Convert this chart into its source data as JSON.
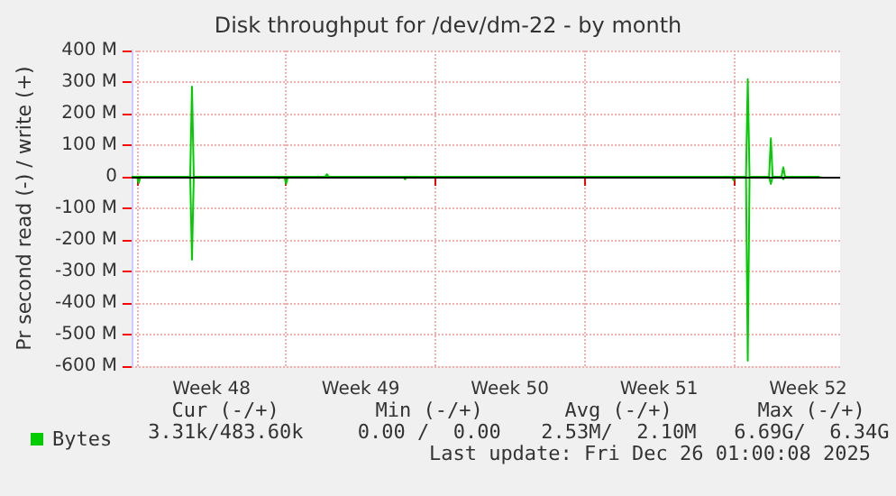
{
  "chart_data": {
    "type": "line",
    "title": "Disk throughput for /dev/dm-22 - by month",
    "ylabel": "Pr second read (-) / write (+)",
    "series": [
      {
        "name": "Bytes",
        "color": "#00cc00",
        "x": [
          "2025-11-23T18:00",
          "2025-11-26T12:00",
          "2025-11-26T14:00",
          "2025-11-26T16:00",
          "2025-12-02T20:00",
          "2025-12-02T22:00",
          "2025-12-03T00:00",
          "2025-12-22T14:00",
          "2025-12-22T16:00",
          "2025-12-22T18:00",
          "2025-12-23T16:00",
          "2025-12-23T18:00",
          "2025-12-23T20:00",
          "2025-12-24T06:00",
          "2025-12-24T08:00",
          "2025-12-24T10:00",
          "2025-12-26T01:00"
        ],
        "values": [
          0,
          0,
          286,
          0,
          0,
          8,
          0,
          0,
          309,
          0,
          0,
          122,
          0,
          0,
          30,
          0,
          0
        ]
      },
      {
        "color": "#00cc00",
        "x": [
          "2025-11-23T18:00",
          "2025-11-24T00:00",
          "2025-11-24T02:00",
          "2025-11-24T04:00",
          "2025-11-26T12:00",
          "2025-11-26T14:00",
          "2025-11-26T16:00",
          "2025-11-30T14:00",
          "2025-11-30T16:00",
          "2025-11-30T18:00",
          "2025-11-30T22:00",
          "2025-12-01T00:00",
          "2025-12-01T02:00",
          "2025-12-06T12:00",
          "2025-12-06T14:00",
          "2025-12-06T16:00",
          "2025-12-21T22:00",
          "2025-12-22T00:00",
          "2025-12-22T02:00",
          "2025-12-22T14:00",
          "2025-12-22T16:00",
          "2025-12-22T18:00",
          "2025-12-23T16:00",
          "2025-12-23T18:00",
          "2025-12-23T20:00",
          "2025-12-24T06:00",
          "2025-12-24T08:00",
          "2025-12-24T10:00",
          "2025-12-26T01:00"
        ],
        "values": [
          0,
          0,
          -20,
          0,
          0,
          -263,
          0,
          0,
          -5,
          0,
          0,
          -23,
          0,
          0,
          -8,
          0,
          0,
          -11,
          0,
          0,
          -583,
          0,
          0,
          -23,
          0,
          0,
          -8,
          0,
          0
        ]
      }
    ],
    "xlim": [
      "2025-11-23T18:00",
      "2025-12-27T00:00"
    ],
    "xticks": [
      {
        "value": "2025-11-24T00:00",
        "label": null
      },
      {
        "value": "2025-11-27T12:00",
        "label": "Week 48"
      },
      {
        "value": "2025-12-01T00:00",
        "label": null
      },
      {
        "value": "2025-12-04T12:00",
        "label": "Week 49"
      },
      {
        "value": "2025-12-08T00:00",
        "label": null
      },
      {
        "value": "2025-12-11T12:00",
        "label": "Week 50"
      },
      {
        "value": "2025-12-15T00:00",
        "label": null
      },
      {
        "value": "2025-12-18T12:00",
        "label": "Week 51"
      },
      {
        "value": "2025-12-22T00:00",
        "label": null
      },
      {
        "value": "2025-12-25T12:00",
        "label": "Week 52"
      }
    ],
    "ylim": [
      -600,
      400
    ],
    "yticks": [
      {
        "value": -600,
        "label": "-600 M"
      },
      {
        "value": -500,
        "label": "-500 M"
      },
      {
        "value": -400,
        "label": "-400 M"
      },
      {
        "value": -300,
        "label": "-300 M"
      },
      {
        "value": -200,
        "label": "-200 M"
      },
      {
        "value": -100,
        "label": "-100 M"
      },
      0,
      {
        "value": 100,
        "label": "100 M"
      },
      {
        "value": 200,
        "label": "200 M"
      },
      {
        "value": 300,
        "label": "300 M"
      },
      {
        "value": 400,
        "label": "400 M"
      }
    ],
    "ref_lines": [
      {
        "axis": "y",
        "value": 0,
        "color": "#000000"
      }
    ],
    "grid": true,
    "legend": "bottom left",
    "marker": "none",
    "line_style": "solid",
    "annotations": [
      "Cur (-/+)",
      "Min (-/+)",
      "Avg (-/+)",
      "Max (-/+)",
      "3.31k/483.60k",
      "0.00 /  0.00",
      "2.53M/  2.10M",
      "6.69G/  6.34G",
      "Last update: Fri Dec 26 01:00:08 2025"
    ]
  }
}
